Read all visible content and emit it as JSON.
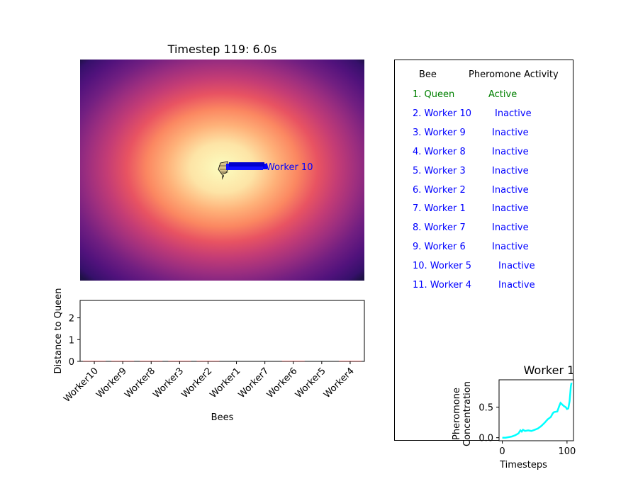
{
  "heatmap": {
    "title": "Timestep 119: 6.0s",
    "colormap": "magma",
    "label": "Worker 10"
  },
  "table": {
    "headers": [
      "Bee",
      "Pheromone Activity"
    ],
    "rows": [
      {
        "name": "1. Queen",
        "status": "Active",
        "color": "#008000"
      },
      {
        "name": "2. Worker 10",
        "status": "Inactive",
        "color": "#0000ff"
      },
      {
        "name": "3. Worker 9",
        "status": "Inactive",
        "color": "#0000ff"
      },
      {
        "name": "4. Worker 8",
        "status": "Inactive",
        "color": "#0000ff"
      },
      {
        "name": "5. Worker 3",
        "status": "Inactive",
        "color": "#0000ff"
      },
      {
        "name": "6. Worker 2",
        "status": "Inactive",
        "color": "#0000ff"
      },
      {
        "name": "7. Worker 1",
        "status": "Inactive",
        "color": "#0000ff"
      },
      {
        "name": "8. Worker 7",
        "status": "Inactive",
        "color": "#0000ff"
      },
      {
        "name": "9. Worker 6",
        "status": "Inactive",
        "color": "#0000ff"
      },
      {
        "name": "10. Worker 5",
        "status": "Inactive",
        "color": "#0000ff"
      },
      {
        "name": "11. Worker 4",
        "status": "Inactive",
        "color": "#0000ff"
      }
    ]
  },
  "chart_data": [
    {
      "type": "bar",
      "categories": [
        "Worker10",
        "Worker9",
        "Worker8",
        "Worker3",
        "Worker2",
        "Worker1",
        "Worker7",
        "Worker6",
        "Worker5",
        "Worker4"
      ],
      "values": [
        0.02,
        0.02,
        0.02,
        0.02,
        0.02,
        0,
        0,
        0.02,
        0,
        0.02
      ],
      "xlabel": "Bees",
      "ylabel": "Distance to Queen",
      "ylim": [
        0,
        2.8
      ],
      "yticks": [
        0,
        1,
        2
      ],
      "bar_color": "#d62728"
    },
    {
      "type": "line",
      "title": "Worker 1",
      "xlabel": "Timesteps",
      "ylabel": "Pheromone Concentration",
      "xlim": [
        -5,
        110
      ],
      "ylim": [
        -0.05,
        0.95
      ],
      "xticks": [
        0,
        100
      ],
      "yticks": [
        0.0,
        0.5
      ],
      "ytick_labels": [
        "0.0",
        "0.5"
      ],
      "color": "#00ffff",
      "x": [
        0,
        5,
        10,
        15,
        20,
        25,
        28,
        30,
        32,
        35,
        40,
        45,
        50,
        55,
        60,
        65,
        70,
        75,
        78,
        80,
        85,
        88,
        90,
        92,
        95,
        98,
        100,
        102,
        104,
        106,
        107
      ],
      "y": [
        0.0,
        0.0,
        0.01,
        0.02,
        0.04,
        0.07,
        0.12,
        0.1,
        0.13,
        0.11,
        0.12,
        0.11,
        0.13,
        0.15,
        0.19,
        0.24,
        0.3,
        0.34,
        0.4,
        0.42,
        0.43,
        0.52,
        0.57,
        0.55,
        0.52,
        0.5,
        0.47,
        0.48,
        0.6,
        0.85,
        0.9
      ]
    }
  ]
}
